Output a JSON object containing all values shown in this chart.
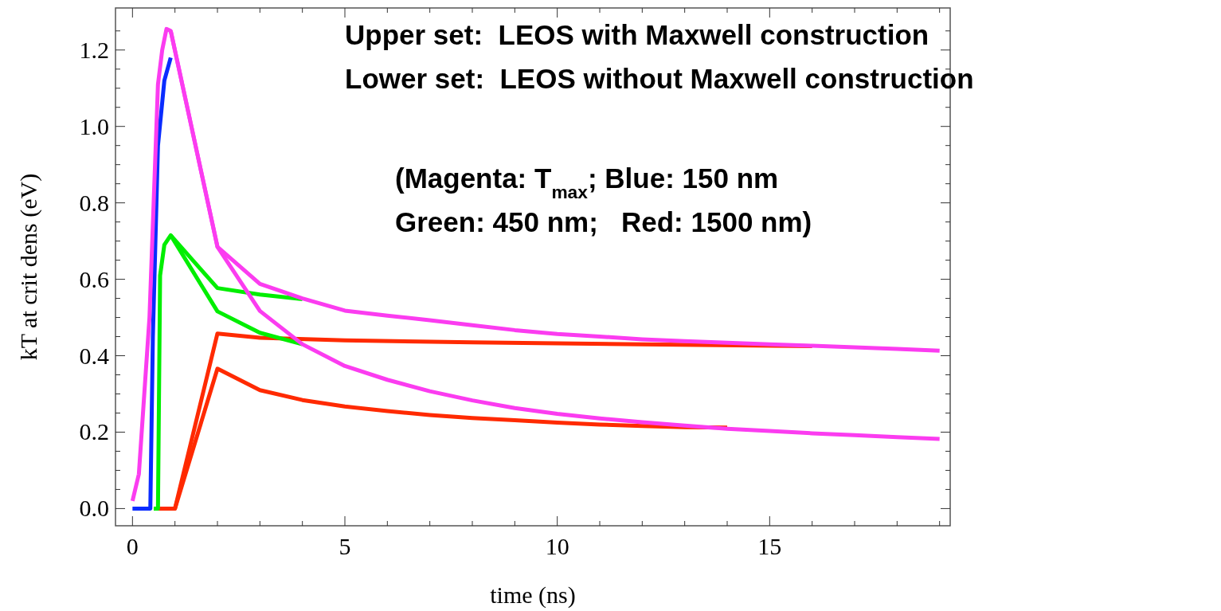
{
  "chart_data": {
    "type": "line",
    "xlabel": "time (ns)",
    "ylabel": "kT at crit dens (eV)",
    "xlim": [
      -0.4,
      19.25
    ],
    "ylim": [
      -0.045,
      1.31
    ],
    "xticks": [
      0,
      {
        "value": 1,
        "label": null
      },
      {
        "value": 2,
        "label": null
      },
      {
        "value": 3,
        "label": null
      },
      {
        "value": 4,
        "label": null
      },
      5,
      {
        "value": 6,
        "label": null
      },
      {
        "value": 7,
        "label": null
      },
      {
        "value": 8,
        "label": null
      },
      {
        "value": 9,
        "label": null
      },
      10,
      {
        "value": 11,
        "label": null
      },
      {
        "value": 12,
        "label": null
      },
      {
        "value": 13,
        "label": null
      },
      {
        "value": 14,
        "label": null
      },
      15,
      {
        "value": 16,
        "label": null
      },
      {
        "value": 17,
        "label": null
      },
      {
        "value": 18,
        "label": null
      },
      {
        "value": 19,
        "label": null
      }
    ],
    "yticks": [
      {
        "value": 0,
        "label": "0.0"
      },
      {
        "value": 0.05,
        "label": null
      },
      {
        "value": 0.1,
        "label": null
      },
      {
        "value": 0.15,
        "label": null
      },
      0.2,
      {
        "value": 0.25,
        "label": null
      },
      {
        "value": 0.3,
        "label": null
      },
      {
        "value": 0.35,
        "label": null
      },
      0.4,
      {
        "value": 0.45,
        "label": null
      },
      {
        "value": 0.5,
        "label": null
      },
      {
        "value": 0.55,
        "label": null
      },
      0.6,
      {
        "value": 0.65,
        "label": null
      },
      {
        "value": 0.7,
        "label": null
      },
      {
        "value": 0.75,
        "label": null
      },
      0.8,
      {
        "value": 0.85,
        "label": null
      },
      {
        "value": 0.9,
        "label": null
      },
      {
        "value": 0.95,
        "label": null
      },
      {
        "value": 1,
        "label": "1.0"
      },
      {
        "value": 1.05,
        "label": null
      },
      {
        "value": 1.1,
        "label": null
      },
      {
        "value": 1.15,
        "label": null
      },
      1.2,
      {
        "value": 1.25,
        "label": null
      }
    ],
    "grid": false,
    "annotations": [
      "Upper set:  LEOS with Maxwell construction",
      "Lower set:  LEOS without Maxwell construction",
      "(Magenta: T$_{max}$; Blue: 150 nm",
      "Green: 450 nm;   Red: 1500 nm)"
    ],
    "series": [
      {
        "color": "#ff2a00",
        "x": [
          0.6,
          1,
          2,
          3,
          5,
          8,
          12,
          16
        ],
        "values": [
          0,
          0,
          0.458,
          0.447,
          0.44,
          0.435,
          0.43,
          0.425
        ]
      },
      {
        "color": "#ff2a00",
        "x": [
          0.6,
          1,
          2,
          3,
          4,
          5,
          6,
          7,
          8,
          9,
          10,
          11,
          12,
          13,
          14
        ],
        "values": [
          0,
          0,
          0.366,
          0.31,
          0.284,
          0.267,
          0.255,
          0.245,
          0.237,
          0.231,
          0.225,
          0.22,
          0.216,
          0.213,
          0.212
        ]
      },
      {
        "color": "#00ee00",
        "x": [
          0.5,
          0.6,
          0.65,
          0.75,
          0.9,
          2,
          3,
          4
        ],
        "values": [
          0,
          0,
          0.61,
          0.69,
          0.715,
          0.577,
          0.56,
          0.548
        ]
      },
      {
        "color": "#00ee00",
        "x": [
          0.9,
          2,
          3,
          4
        ],
        "values": [
          0.715,
          0.516,
          0.46,
          0.43
        ]
      },
      {
        "color": "#0a2cff",
        "x": [
          0,
          0.35,
          0.42,
          0.48,
          0.6,
          0.75,
          0.9
        ],
        "values": [
          0,
          0,
          0,
          0.45,
          0.95,
          1.12,
          1.18
        ]
      },
      {
        "color": "#fb3cf0",
        "x": [
          0,
          0.15,
          0.4,
          0.6,
          0.7,
          0.8,
          0.9,
          2,
          3,
          4,
          5,
          6,
          7,
          8,
          9,
          10,
          11,
          12,
          13,
          14,
          15,
          16,
          17,
          18,
          19
        ],
        "values": [
          0.02,
          0.09,
          0.5,
          1.11,
          1.2,
          1.255,
          1.25,
          0.685,
          0.588,
          0.55,
          0.518,
          0.505,
          0.493,
          0.48,
          0.467,
          0.457,
          0.45,
          0.443,
          0.438,
          0.434,
          0.43,
          0.426,
          0.422,
          0.418,
          0.413
        ]
      },
      {
        "color": "#fb3cf0",
        "x": [
          0.9,
          2,
          3,
          4,
          5,
          6,
          7,
          8,
          9,
          10,
          11,
          12,
          13,
          14,
          15,
          16,
          17,
          18,
          19
        ],
        "values": [
          1.25,
          0.685,
          0.517,
          0.43,
          0.373,
          0.337,
          0.307,
          0.283,
          0.263,
          0.248,
          0.236,
          0.226,
          0.217,
          0.209,
          0.203,
          0.197,
          0.192,
          0.187,
          0.182
        ]
      }
    ]
  }
}
